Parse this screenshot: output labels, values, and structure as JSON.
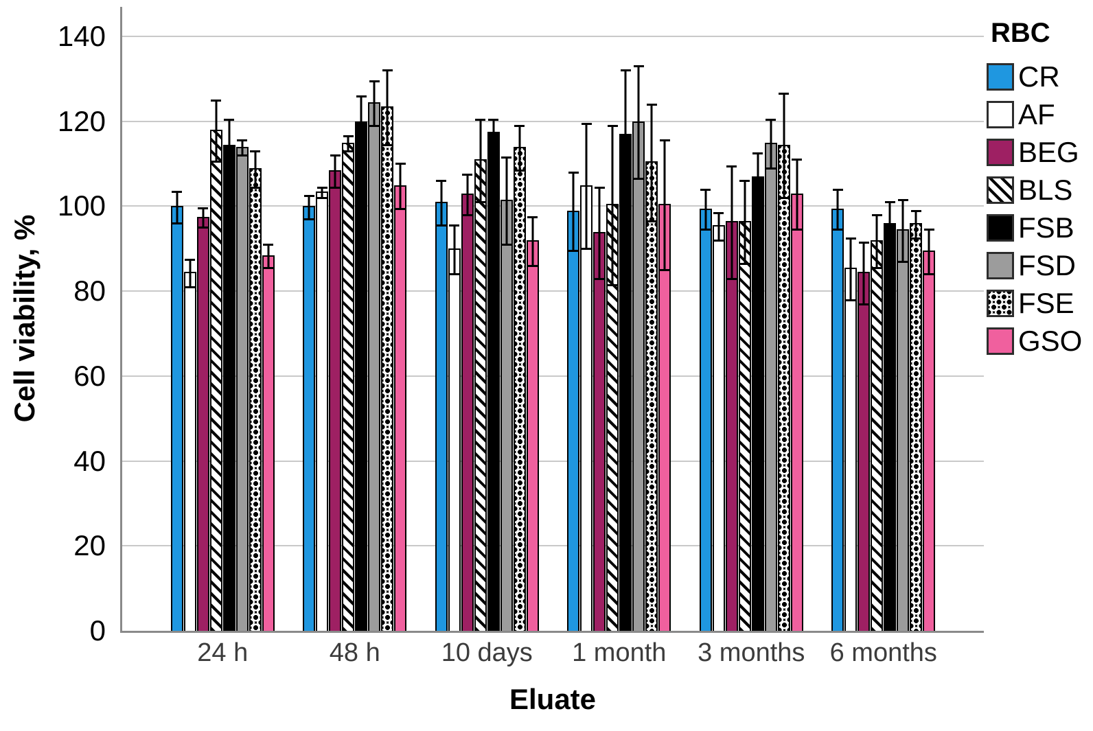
{
  "chart_data": {
    "type": "bar",
    "title": "",
    "xlabel": "Eluate",
    "ylabel": "Cell viability, %",
    "ylim": [
      0,
      140
    ],
    "yticks": [
      0,
      20,
      40,
      60,
      80,
      100,
      120,
      140
    ],
    "grid": "horizontal",
    "error_bars": true,
    "legend_title": "RBC",
    "legend_position": "right",
    "categories": [
      "24 h",
      "48 h",
      "10 days",
      "1 month",
      "3 months",
      "6 months"
    ],
    "series": [
      {
        "name": "CR",
        "color": "#1F97E0",
        "pattern": "solid",
        "values": [
          100,
          100,
          101,
          99,
          99.5,
          99.5
        ],
        "errors": [
          4,
          3,
          5.5,
          9.5,
          5,
          5
        ]
      },
      {
        "name": "AF",
        "color": "#FFFFFF",
        "pattern": "solid",
        "values": [
          84.5,
          103.5,
          90,
          105,
          95.5,
          85.5
        ],
        "errors": [
          3.5,
          1.5,
          6,
          15,
          3.5,
          7.5
        ]
      },
      {
        "name": "BEG",
        "color": "#9E2063",
        "pattern": "solid",
        "values": [
          97.5,
          108.5,
          103,
          94,
          96.5,
          84.5
        ],
        "errors": [
          2.5,
          4,
          5,
          11,
          13.5,
          7.5
        ]
      },
      {
        "name": "BLS",
        "color": "#FFFFFF",
        "pattern": "diagonal-stripes",
        "values": [
          118,
          115,
          111,
          100.5,
          96.5,
          92
        ],
        "errors": [
          7.5,
          2,
          10,
          19,
          10,
          6.5
        ]
      },
      {
        "name": "FSB",
        "color": "#000000",
        "pattern": "solid",
        "values": [
          114.5,
          120,
          117.5,
          117,
          107,
          96
        ],
        "errors": [
          6.5,
          6.5,
          3.5,
          15.5,
          6,
          5.5
        ]
      },
      {
        "name": "FSD",
        "color": "#9C9C9C",
        "pattern": "solid",
        "values": [
          114,
          124.5,
          101.5,
          120,
          115,
          94.5
        ],
        "errors": [
          2,
          5.5,
          10.5,
          13.5,
          6,
          7.5
        ]
      },
      {
        "name": "FSE",
        "color": "#000000",
        "pattern": "chain-lattice",
        "values": [
          109,
          123.5,
          114,
          110.5,
          114.5,
          96
        ],
        "errors": [
          4.5,
          9,
          5.5,
          14,
          12.5,
          3.5
        ]
      },
      {
        "name": "GSO",
        "color": "#F0609E",
        "pattern": "solid",
        "values": [
          88.5,
          105,
          92,
          100.5,
          103,
          89.5
        ],
        "errors": [
          3,
          5.5,
          6,
          15.5,
          8.5,
          5.5
        ]
      }
    ],
    "colors": {
      "axis": "#8A8A8A",
      "grid": "#C9C9C9",
      "error_bar": "#000000",
      "bar_outline": "#000000"
    }
  }
}
